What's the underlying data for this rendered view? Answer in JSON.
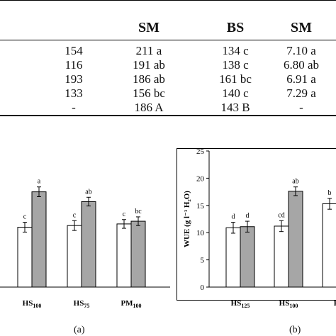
{
  "table": {
    "header": {
      "partial_top": "",
      "col_sm_1": "SM",
      "col_bs": "BS",
      "col_sm_2": "SM"
    },
    "rows": [
      [
        "154",
        "211 a",
        "134 c",
        "7.10 a"
      ],
      [
        "116",
        "191 ab",
        "138 c",
        "6.80 ab"
      ],
      [
        "193",
        "186 ab",
        "161 bc",
        "6.91 a"
      ],
      [
        "133",
        "156 bc",
        "140 c",
        "7.29 a"
      ],
      [
        "-",
        "186 A",
        "143 B",
        "-"
      ]
    ]
  },
  "figures": {
    "a_label": "(a)",
    "b_label": "(b)"
  },
  "chart_data": [
    {
      "type": "bar",
      "panel": "a",
      "categories": [
        "HS100",
        "HS75",
        "PM100"
      ],
      "category_labels": [
        {
          "base": "HS",
          "sub": "100"
        },
        {
          "base": "HS",
          "sub": "75"
        },
        {
          "base": "PM",
          "sub": "100"
        }
      ],
      "series": [
        {
          "color": "#ffffff",
          "values": [
            11.0,
            11.3,
            11.6
          ],
          "errors": [
            0.9,
            0.9,
            0.8
          ],
          "letters": [
            "c",
            "c",
            "c"
          ]
        },
        {
          "color": "#a6a6a6",
          "values": [
            17.5,
            15.7,
            12.1
          ],
          "errors": [
            0.9,
            0.8,
            0.8
          ],
          "letters": [
            "a",
            "ab",
            "bc"
          ]
        }
      ],
      "ylim": [
        0,
        25
      ],
      "xlabel": "",
      "ylabel": "",
      "grid": false
    },
    {
      "type": "bar",
      "panel": "b",
      "categories": [
        "HS125",
        "HS100",
        "H"
      ],
      "category_labels": [
        {
          "base": "HS",
          "sub": "125"
        },
        {
          "base": "HS",
          "sub": "100"
        },
        {
          "base": "H",
          "sub": ""
        }
      ],
      "series": [
        {
          "color": "#ffffff",
          "values": [
            10.9,
            11.2,
            15.3
          ],
          "errors": [
            1.0,
            1.0,
            1.0
          ],
          "letters": [
            "d",
            "cd",
            "b"
          ]
        },
        {
          "color": "#a6a6a6",
          "values": [
            11.1,
            17.6,
            null
          ],
          "errors": [
            1.0,
            0.8,
            null
          ],
          "letters": [
            "d",
            "ab",
            ""
          ]
        }
      ],
      "ylim": [
        0,
        25
      ],
      "yticks": [
        "0",
        "5",
        "10",
        "15",
        "20",
        "25"
      ],
      "ylabel": "WUE (g l⁻¹ H₂O)",
      "xlabel": "",
      "grid": false
    }
  ]
}
